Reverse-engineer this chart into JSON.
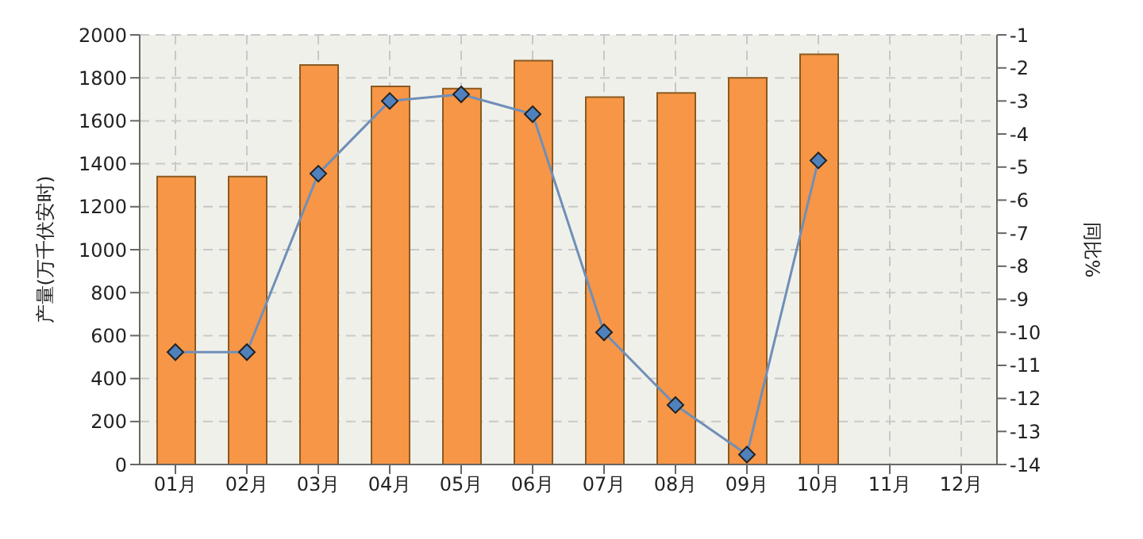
{
  "chart_data": {
    "type": "bar",
    "ylabel": "产量(万千伏安时)",
    "y2label": "同比%",
    "categories": [
      "01月",
      "02月",
      "03月",
      "04月",
      "05月",
      "06月",
      "07月",
      "08月",
      "09月",
      "10月",
      "11月",
      "12月"
    ],
    "series": [
      {
        "color": "#f79646",
        "values": [
          1340,
          1340,
          1860,
          1760,
          1750,
          1880,
          1710,
          1730,
          1800,
          1910,
          null,
          null
        ]
      },
      {
        "type": "line",
        "axis": "y2",
        "color": "#6f8fb8",
        "marker": "diamond",
        "values": [
          -10.6,
          -10.6,
          -5.2,
          -3.0,
          -2.8,
          -3.4,
          -10.0,
          -12.2,
          -13.7,
          -4.8,
          null,
          null
        ]
      }
    ],
    "ylim": [
      0,
      2000
    ],
    "yticks": [
      0,
      200,
      400,
      600,
      800,
      1000,
      1200,
      1400,
      1600,
      1800,
      2000
    ],
    "y2lim": [
      -14,
      -1
    ],
    "y2ticks": [
      -1,
      -2,
      -3,
      -4,
      -5,
      -6,
      -7,
      -8,
      -9,
      -10,
      -11,
      -12,
      -13,
      -14
    ],
    "grid": true,
    "legend": false
  }
}
